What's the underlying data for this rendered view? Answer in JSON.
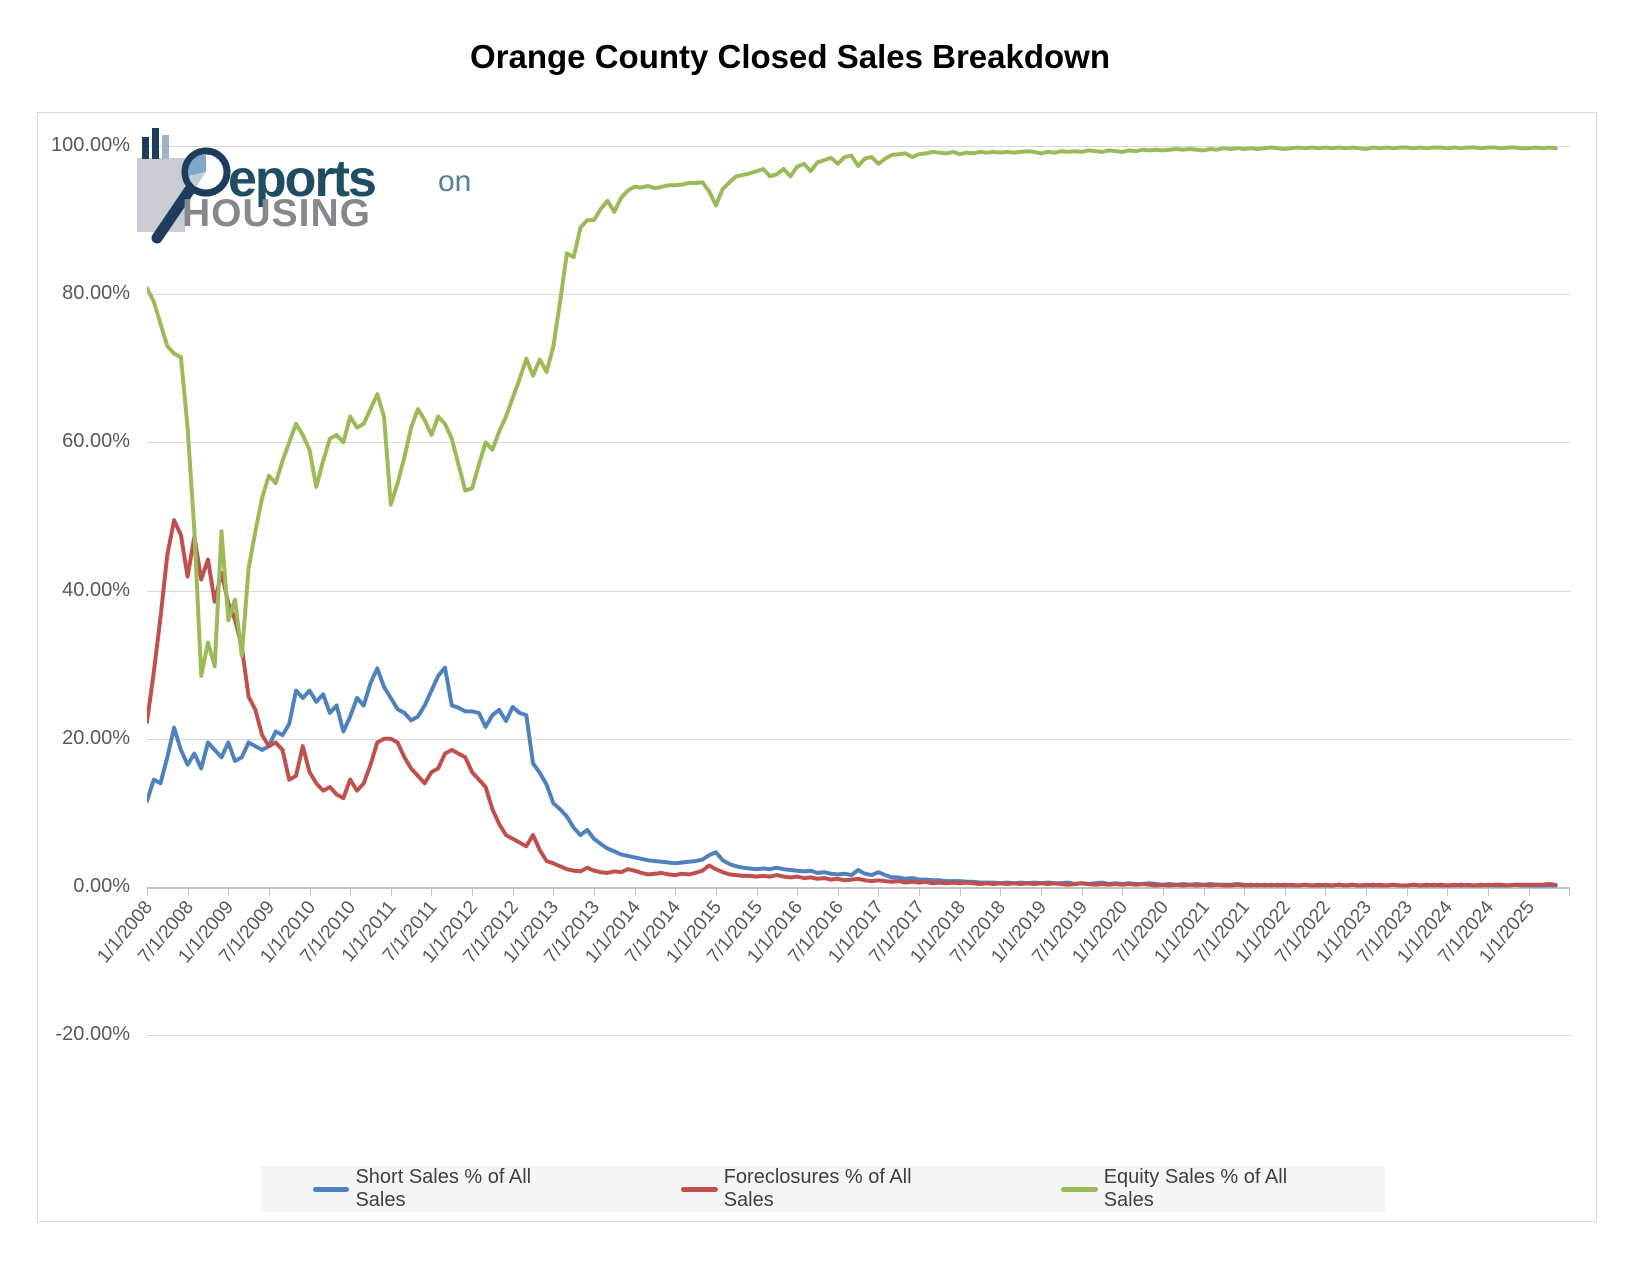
{
  "title": "Orange County Closed Sales Breakdown",
  "logo": {
    "reports_text": "eports",
    "on_text": "on",
    "housing_text": "HOUSING"
  },
  "colors": {
    "short": "#4F81BD",
    "foreclosure": "#C0504D",
    "equity": "#9BBB59",
    "gridline": "#D9D9D9",
    "axis_line": "#C3C3C3",
    "axis_label": "#595959",
    "legend_bg": "#F5F5F5",
    "legend_text": "#3F3F3F"
  },
  "y_axis": {
    "labels": [
      "100.00%",
      "80.00%",
      "60.00%",
      "40.00%",
      "20.00%",
      "0.00%",
      "-20.00%"
    ],
    "values": [
      100,
      80,
      60,
      40,
      20,
      0,
      -20
    ]
  },
  "legend": {
    "items": [
      "Short Sales % of All Sales",
      "Foreclosures % of All Sales",
      "Equity Sales % of All Sales"
    ]
  },
  "chart_data": {
    "type": "line",
    "title": "Orange County Closed Sales Breakdown",
    "xlabel": "",
    "ylabel": "",
    "ylim": [
      -20,
      100
    ],
    "y_tick_step": 20,
    "grid": "horizontal",
    "legend_position": "bottom",
    "frequency": "monthly",
    "x_start": "1/1/2008",
    "x_end": "5/1/2025",
    "x_tick_labels": [
      "1/1/2008",
      "7/1/2008",
      "1/1/2009",
      "7/1/2009",
      "1/1/2010",
      "7/1/2010",
      "1/1/2011",
      "7/1/2011",
      "1/1/2012",
      "7/1/2012",
      "1/1/2013",
      "7/1/2013",
      "1/1/2014",
      "7/1/2014",
      "1/1/2015",
      "7/1/2015",
      "1/1/2016",
      "7/1/2016",
      "1/1/2017",
      "7/1/2017",
      "1/1/2018",
      "7/1/2018",
      "1/1/2019",
      "7/1/2019",
      "1/1/2020",
      "7/1/2020",
      "1/1/2021",
      "7/1/2021",
      "1/1/2022",
      "7/1/2022",
      "1/1/2023",
      "7/1/2023",
      "1/1/2024",
      "7/1/2024",
      "1/1/2025"
    ],
    "series": [
      {
        "name": "Short Sales % of All Sales",
        "color": "#4F81BD",
        "values": [
          11.6,
          14.5,
          14.0,
          17.5,
          21.5,
          18.5,
          16.5,
          18.0,
          16.0,
          19.5,
          18.5,
          17.5,
          19.5,
          17.0,
          17.5,
          19.5,
          19.0,
          18.5,
          19.0,
          21.0,
          20.5,
          22.0,
          26.5,
          25.5,
          26.5,
          25.0,
          26.0,
          23.5,
          24.5,
          21.0,
          23.0,
          25.5,
          24.5,
          27.5,
          29.5,
          27.0,
          25.5,
          24.0,
          23.5,
          22.5,
          23.0,
          24.5,
          26.5,
          28.5,
          29.6,
          24.5,
          24.2,
          23.7,
          23.7,
          23.5,
          21.6,
          23.2,
          23.9,
          22.4,
          24.3,
          23.5,
          23.2,
          16.7,
          15.4,
          13.8,
          11.3,
          10.5,
          9.5,
          8.0,
          7.0,
          7.7,
          6.5,
          5.8,
          5.2,
          4.8,
          4.4,
          4.2,
          4.0,
          3.8,
          3.6,
          3.5,
          3.4,
          3.3,
          3.2,
          3.3,
          3.4,
          3.5,
          3.7,
          4.3,
          4.7,
          3.6,
          3.1,
          2.8,
          2.6,
          2.5,
          2.4,
          2.5,
          2.4,
          2.6,
          2.4,
          2.3,
          2.2,
          2.1,
          2.2,
          1.9,
          2.0,
          1.8,
          1.7,
          1.8,
          1.6,
          2.3,
          1.8,
          1.6,
          2.0,
          1.6,
          1.3,
          1.3,
          1.1,
          1.2,
          1.0,
          1.0,
          0.9,
          0.9,
          0.8,
          0.8,
          0.8,
          0.7,
          0.7,
          0.6,
          0.6,
          0.6,
          0.5,
          0.6,
          0.5,
          0.6,
          0.5,
          0.6,
          0.5,
          0.6,
          0.5,
          0.5,
          0.6,
          0.4,
          0.5,
          0.4,
          0.5,
          0.6,
          0.4,
          0.5,
          0.4,
          0.5,
          0.4,
          0.4,
          0.5,
          0.4,
          0.3,
          0.4,
          0.3,
          0.4,
          0.3,
          0.4,
          0.3,
          0.4,
          0.3,
          0.3,
          0.3,
          0.4,
          0.3,
          0.2,
          0.3,
          0.2,
          0.3,
          0.2,
          0.3,
          0.2,
          0.2,
          0.3,
          0.2,
          0.3,
          0.2,
          0.2,
          0.3,
          0.2,
          0.3,
          0.2,
          0.2,
          0.3,
          0.2,
          0.2,
          0.3,
          0.2,
          0.2,
          0.3,
          0.2,
          0.2,
          0.3,
          0.2,
          0.2,
          0.2,
          0.3,
          0.2,
          0.2,
          0.2,
          0.3,
          0.2,
          0.2,
          0.2,
          0.3,
          0.2,
          0.2,
          0.2,
          0.2,
          0.2,
          0.2
        ]
      },
      {
        "name": "Foreclosures % of All Sales",
        "color": "#C0504D",
        "values": [
          22.3,
          29.0,
          36.4,
          44.8,
          49.5,
          47.5,
          41.9,
          47.3,
          41.5,
          44.2,
          38.5,
          42.4,
          38.3,
          36.1,
          32.4,
          25.7,
          23.9,
          20.5,
          19.0,
          19.5,
          18.5,
          14.5,
          15.0,
          19.0,
          15.5,
          14.0,
          13.0,
          13.5,
          12.5,
          12.0,
          14.5,
          13.0,
          14.0,
          16.5,
          19.5,
          20.0,
          20.0,
          19.5,
          17.5,
          16.0,
          15.0,
          14.0,
          15.5,
          16.0,
          18.0,
          18.5,
          18.0,
          17.5,
          15.5,
          14.5,
          13.5,
          10.5,
          8.5,
          7.0,
          6.5,
          6.0,
          5.5,
          7.0,
          5.0,
          3.5,
          3.2,
          2.8,
          2.4,
          2.2,
          2.1,
          2.6,
          2.2,
          2.0,
          1.9,
          2.1,
          2.0,
          2.4,
          2.2,
          1.9,
          1.7,
          1.8,
          1.9,
          1.7,
          1.6,
          1.8,
          1.7,
          1.9,
          2.2,
          2.9,
          2.4,
          2.0,
          1.7,
          1.6,
          1.5,
          1.5,
          1.4,
          1.5,
          1.4,
          1.6,
          1.4,
          1.3,
          1.4,
          1.2,
          1.3,
          1.1,
          1.2,
          1.0,
          1.1,
          0.9,
          1.0,
          1.1,
          0.9,
          0.8,
          0.9,
          0.8,
          0.7,
          0.8,
          0.6,
          0.7,
          0.6,
          0.7,
          0.5,
          0.6,
          0.5,
          0.6,
          0.5,
          0.6,
          0.5,
          0.4,
          0.5,
          0.4,
          0.5,
          0.4,
          0.5,
          0.4,
          0.5,
          0.4,
          0.5,
          0.4,
          0.5,
          0.4,
          0.3,
          0.4,
          0.5,
          0.4,
          0.3,
          0.4,
          0.3,
          0.4,
          0.3,
          0.4,
          0.3,
          0.4,
          0.3,
          0.2,
          0.3,
          0.2,
          0.3,
          0.2,
          0.3,
          0.2,
          0.3,
          0.2,
          0.3,
          0.2,
          0.2,
          0.3,
          0.2,
          0.3,
          0.2,
          0.3,
          0.2,
          0.3,
          0.2,
          0.3,
          0.2,
          0.3,
          0.2,
          0.2,
          0.3,
          0.2,
          0.3,
          0.2,
          0.3,
          0.2,
          0.3,
          0.2,
          0.3,
          0.2,
          0.3,
          0.2,
          0.2,
          0.3,
          0.2,
          0.3,
          0.2,
          0.3,
          0.2,
          0.3,
          0.2,
          0.3,
          0.2,
          0.3,
          0.2,
          0.3,
          0.3,
          0.2,
          0.3,
          0.3,
          0.3,
          0.3,
          0.3,
          0.4,
          0.3
        ]
      },
      {
        "name": "Equity Sales % of All Sales",
        "color": "#9BBB59",
        "values": [
          80.8,
          79.0,
          76.0,
          73.0,
          72.0,
          71.5,
          62.0,
          48.0,
          28.5,
          33.0,
          29.8,
          48.0,
          36.0,
          38.8,
          31.2,
          43.0,
          48.0,
          52.5,
          55.5,
          54.5,
          57.5,
          60.0,
          62.5,
          61.0,
          59.0,
          54.0,
          57.5,
          60.5,
          61.0,
          60.0,
          63.5,
          62.0,
          62.5,
          64.5,
          66.5,
          63.5,
          51.6,
          54.5,
          58.0,
          62.0,
          64.5,
          63.0,
          61.0,
          63.5,
          62.5,
          60.5,
          57.0,
          53.5,
          53.8,
          57.0,
          60.0,
          59.0,
          61.5,
          63.5,
          66.0,
          68.5,
          71.3,
          69.0,
          71.2,
          69.5,
          73.0,
          79.0,
          85.5,
          85.0,
          89.0,
          90.0,
          90.0,
          91.5,
          92.6,
          91.1,
          93.0,
          94.0,
          94.5,
          94.4,
          94.6,
          94.3,
          94.5,
          94.7,
          94.7,
          94.8,
          95.0,
          95.0,
          95.1,
          93.9,
          92.0,
          94.2,
          95.1,
          95.9,
          96.1,
          96.3,
          96.6,
          96.9,
          95.9,
          96.2,
          96.9,
          95.9,
          97.2,
          97.6,
          96.6,
          97.8,
          98.1,
          98.4,
          97.6,
          98.5,
          98.7,
          97.3,
          98.3,
          98.5,
          97.6,
          98.3,
          98.8,
          98.9,
          99.0,
          98.5,
          98.9,
          99.0,
          99.2,
          99.1,
          99.0,
          99.2,
          98.9,
          99.1,
          99.0,
          99.2,
          99.1,
          99.2,
          99.1,
          99.2,
          99.1,
          99.2,
          99.3,
          99.2,
          99.0,
          99.2,
          99.1,
          99.3,
          99.2,
          99.3,
          99.2,
          99.4,
          99.3,
          99.2,
          99.4,
          99.3,
          99.2,
          99.4,
          99.3,
          99.5,
          99.4,
          99.5,
          99.4,
          99.5,
          99.6,
          99.5,
          99.6,
          99.5,
          99.4,
          99.6,
          99.5,
          99.7,
          99.6,
          99.7,
          99.6,
          99.7,
          99.6,
          99.7,
          99.8,
          99.7,
          99.6,
          99.7,
          99.8,
          99.7,
          99.8,
          99.7,
          99.8,
          99.7,
          99.8,
          99.7,
          99.8,
          99.7,
          99.6,
          99.8,
          99.7,
          99.8,
          99.7,
          99.8,
          99.8,
          99.7,
          99.8,
          99.7,
          99.8,
          99.8,
          99.7,
          99.8,
          99.7,
          99.8,
          99.8,
          99.7,
          99.8,
          99.8,
          99.7,
          99.8,
          99.8,
          99.7,
          99.7,
          99.8,
          99.7,
          99.8,
          99.7
        ]
      }
    ]
  }
}
